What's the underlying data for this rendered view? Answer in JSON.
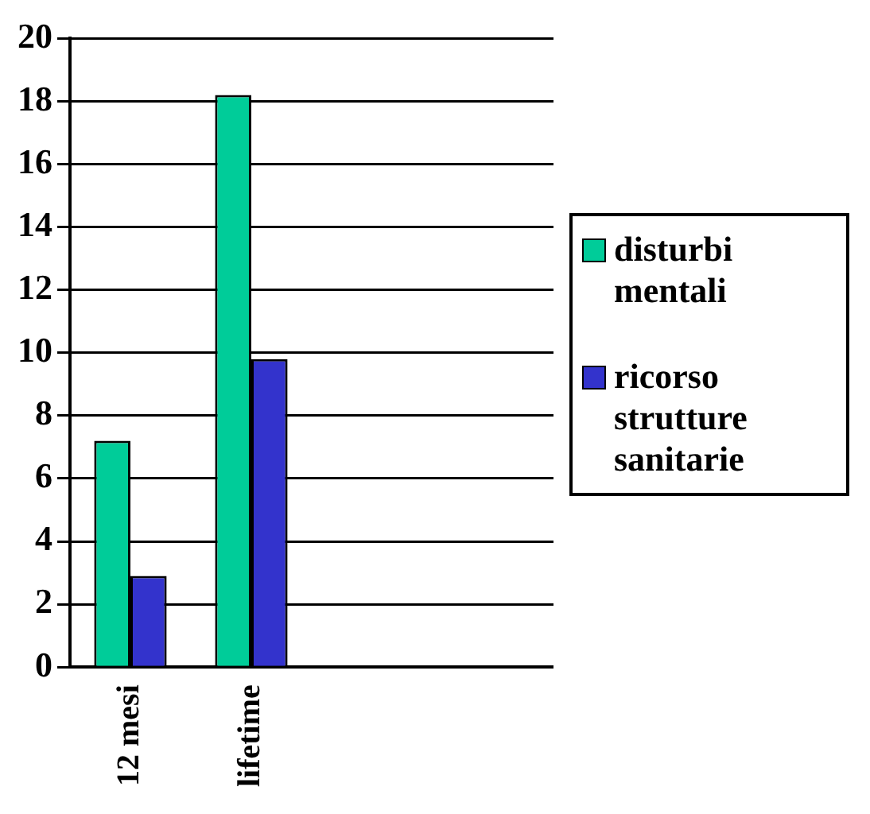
{
  "chart_data": {
    "type": "bar",
    "categories": [
      "12 mesi",
      "lifetime",
      null,
      null
    ],
    "series": [
      {
        "name": "disturbi mentali",
        "color": "#00cc99",
        "values": [
          7.2,
          18.2,
          null,
          null
        ]
      },
      {
        "name": "ricorso strutture sanitarie",
        "color": "#3333cc",
        "values": [
          2.9,
          9.8,
          null,
          null
        ]
      }
    ],
    "ylim": [
      0,
      20
    ],
    "yticks": [
      0,
      2,
      4,
      6,
      8,
      10,
      12,
      14,
      16,
      18,
      20
    ],
    "grid": "y",
    "legend": "right"
  }
}
